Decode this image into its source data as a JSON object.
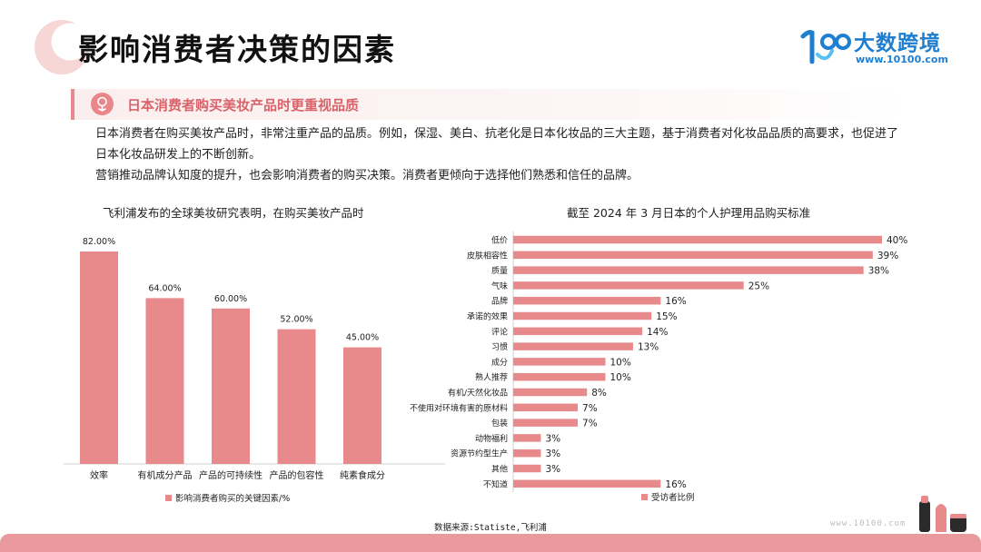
{
  "page": {
    "title": "影响消费者决策的因素",
    "logo_name": "大数跨境",
    "logo_url": "www.10100.com",
    "watermark": "www.10100.com",
    "source": "数据来源:Statiste,飞利浦"
  },
  "section": {
    "title": "日本消费者购买美妆产品时更重视品质",
    "paragraphs": [
      "日本消费者在购买美妆产品时，非常注重产品的品质。例如，保湿、美白、抗老化是日本化妆品的三大主题，基于消费者对化妆品品质的高要求，也促进了日本化妆品研发上的不断创新。",
      "营销推动品牌认知度的提升，也会影响消费者的购买决策。消费者更倾向于选择他们熟悉和信任的品牌。"
    ]
  },
  "colors": {
    "bar": "#e8898c",
    "accent": "#d9636a",
    "brand_blue": "#1e7fd1"
  },
  "chart_data": [
    {
      "type": "bar",
      "title": "飞利浦发布的全球美妆研究表明，在购买美妆产品时",
      "categories": [
        "效率",
        "有机成分产品",
        "产品的可持续性",
        "产品的包容性",
        "纯素食成分"
      ],
      "series": [
        {
          "name": "影响消费者购买的关键因素/%",
          "values": [
            82,
            64,
            60,
            52,
            45
          ]
        }
      ],
      "value_labels": [
        "82.00%",
        "64.00%",
        "60.00%",
        "52.00%",
        "45.00%"
      ],
      "ylim": [
        0,
        100
      ],
      "grid": false,
      "legend": "bottom"
    },
    {
      "type": "bar",
      "orientation": "horizontal",
      "title": "截至 2024 年 3 月日本的个人护理用品购买标准",
      "categories": [
        "低价",
        "皮肤相容性",
        "质量",
        "气味",
        "品牌",
        "承诺的效果",
        "评论",
        "习惯",
        "成分",
        "熟人推荐",
        "有机/天然化妆品",
        "不使用对环境有害的原材料",
        "包装",
        "动物福利",
        "资源节约型生产",
        "其他",
        "不知道"
      ],
      "series": [
        {
          "name": "受访者比例",
          "values": [
            40,
            39,
            38,
            25,
            16,
            15,
            14,
            13,
            10,
            10,
            8,
            7,
            7,
            3,
            3,
            3,
            16
          ]
        }
      ],
      "value_labels": [
        "40%",
        "39%",
        "38%",
        "25%",
        "16%",
        "15%",
        "14%",
        "13%",
        "10%",
        "10%",
        "8%",
        "7%",
        "7%",
        "3%",
        "3%",
        "3%",
        "16%"
      ],
      "xlim": [
        0,
        40
      ],
      "grid": false,
      "legend": "bottom"
    }
  ]
}
